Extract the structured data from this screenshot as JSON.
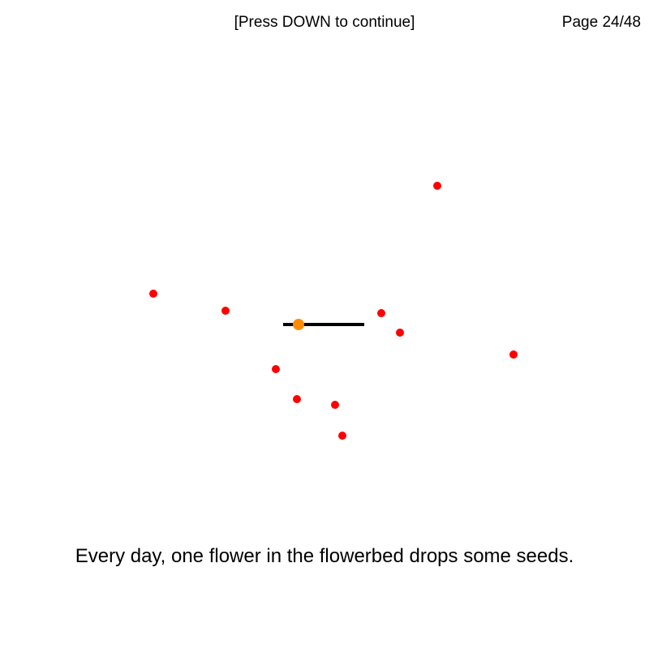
{
  "header": {
    "hint": "[Press DOWN to continue]",
    "page_counter": "Page 24/48"
  },
  "scene": {
    "seed_color": "#ff0000",
    "flower_color": "#ff8c00",
    "flowerbed_color": "#000000",
    "seed_count": 10
  },
  "caption": "Every day, one flower in the flowerbed drops some seeds."
}
